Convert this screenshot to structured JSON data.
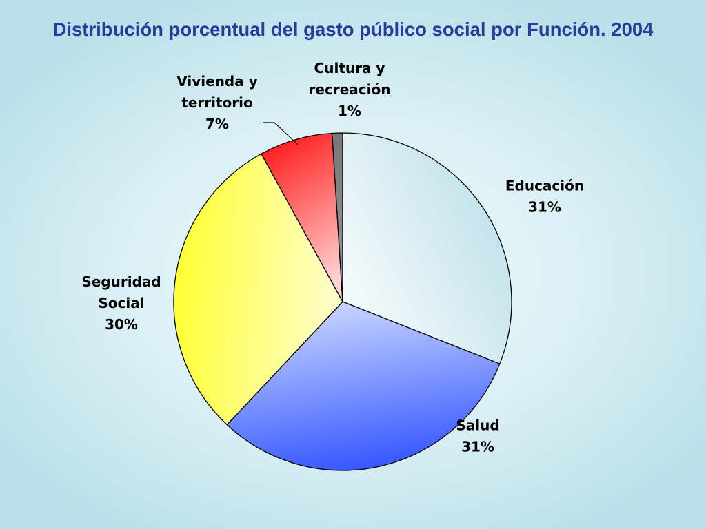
{
  "chart_data": {
    "type": "pie",
    "title": "Distribución porcentual del gasto público social por Función. 2004",
    "slices": [
      {
        "label": [
          "Educación"
        ],
        "value": 31,
        "value_label": "31%",
        "color": "#bfe0ea",
        "color_light": "#f4fafc"
      },
      {
        "label": [
          "Salud"
        ],
        "value": 31,
        "value_label": "31%",
        "color": "#3355ff",
        "color_light": "#c7d4ff"
      },
      {
        "label": [
          "Seguridad",
          "Social"
        ],
        "value": 30,
        "value_label": "30%",
        "color": "#ffff33",
        "color_light": "#fdfdd0"
      },
      {
        "label": [
          "Vivienda y",
          "territorio"
        ],
        "value": 7,
        "value_label": "7%",
        "color": "#ff2222",
        "color_light": "#ffd6d6"
      },
      {
        "label": [
          "Cultura y",
          "recreación"
        ],
        "value": 1,
        "value_label": "1%",
        "color": "#777777",
        "color_light": "#999999"
      }
    ]
  }
}
